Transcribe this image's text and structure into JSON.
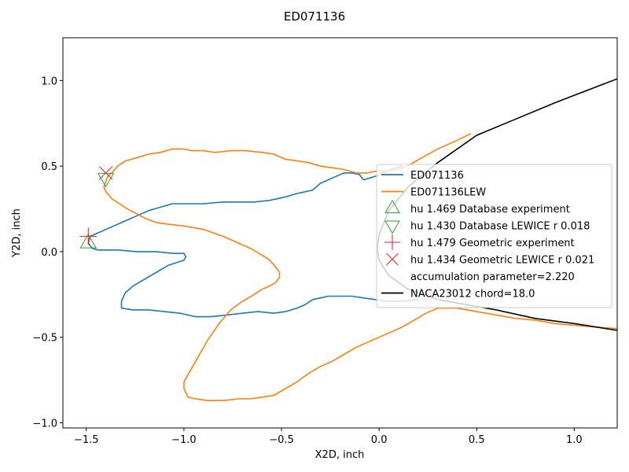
{
  "chart_data": {
    "type": "line",
    "title": "ED071136",
    "xlabel": "X2D, inch",
    "ylabel": "Y2D, inch",
    "xlim": [
      -1.62,
      1.22
    ],
    "ylim": [
      -1.03,
      1.25
    ],
    "xticks": [
      -1.5,
      -1.0,
      -0.5,
      0.0,
      0.5,
      1.0
    ],
    "xtick_labels": [
      "−1.5",
      "−1.0",
      "−0.5",
      "0.0",
      "0.5",
      "1.0"
    ],
    "yticks": [
      -1.0,
      -0.5,
      0.0,
      0.5,
      1.0
    ],
    "ytick_labels": [
      "−1.0",
      "−0.5",
      "0.0",
      "0.5",
      "1.0"
    ],
    "grid": false,
    "legend_position": "center-right",
    "series": [
      {
        "name": "ED071136",
        "color": "#1f77b4",
        "kind": "line",
        "x": [
          0.12,
          0.06,
          -0.02,
          -0.08,
          -0.1,
          -0.14,
          -0.18,
          -0.22,
          -0.26,
          -0.3,
          -0.34,
          -0.38,
          -0.42,
          -0.48,
          -0.56,
          -0.64,
          -0.72,
          -0.8,
          -0.9,
          -1.0,
          -1.06,
          -1.12,
          -1.18,
          -1.24,
          -1.28,
          -1.32,
          -1.36,
          -1.4,
          -1.44,
          -1.48,
          -1.49,
          -1.47,
          -1.44,
          -1.4,
          -1.34,
          -1.24,
          -1.14,
          -1.06,
          -1.0,
          -0.99,
          -1.0,
          -1.08,
          -1.14,
          -1.2,
          -1.26,
          -1.3,
          -1.32,
          -1.32,
          -1.26,
          -1.18,
          -1.1,
          -1.02,
          -0.94,
          -0.86,
          -0.78,
          -0.7,
          -0.62,
          -0.54,
          -0.48,
          -0.42,
          -0.38,
          -0.34,
          -0.3,
          -0.26,
          -0.2,
          -0.14,
          -0.08,
          -0.02,
          0.04,
          0.12,
          0.2
        ],
        "y": [
          0.5,
          0.48,
          0.44,
          0.42,
          0.45,
          0.46,
          0.46,
          0.44,
          0.42,
          0.4,
          0.36,
          0.35,
          0.34,
          0.32,
          0.3,
          0.29,
          0.29,
          0.29,
          0.28,
          0.28,
          0.28,
          0.26,
          0.24,
          0.21,
          0.19,
          0.17,
          0.15,
          0.13,
          0.11,
          0.09,
          0.05,
          0.02,
          0.01,
          0.01,
          0.01,
          0.0,
          0.0,
          -0.01,
          -0.01,
          -0.03,
          -0.05,
          -0.08,
          -0.12,
          -0.16,
          -0.2,
          -0.24,
          -0.29,
          -0.33,
          -0.34,
          -0.34,
          -0.35,
          -0.36,
          -0.38,
          -0.38,
          -0.37,
          -0.36,
          -0.35,
          -0.36,
          -0.35,
          -0.33,
          -0.31,
          -0.28,
          -0.27,
          -0.26,
          -0.26,
          -0.26,
          -0.27,
          -0.28,
          -0.29,
          -0.29,
          -0.28
        ]
      },
      {
        "name": "ED071136LEW",
        "color": "#ff7f0e",
        "kind": "line",
        "x": [
          0.47,
          0.38,
          0.3,
          0.22,
          0.16,
          0.1,
          0.04,
          -0.02,
          -0.06,
          -0.12,
          -0.18,
          -0.24,
          -0.3,
          -0.36,
          -0.42,
          -0.48,
          -0.54,
          -0.6,
          -0.68,
          -0.76,
          -0.84,
          -0.9,
          -0.96,
          -1.0,
          -1.06,
          -1.12,
          -1.18,
          -1.24,
          -1.3,
          -1.34,
          -1.37,
          -1.39,
          -1.4,
          -1.41,
          -1.4,
          -1.37,
          -1.33,
          -1.29,
          -1.24,
          -1.19,
          -1.14,
          -1.08,
          -1.0,
          -0.9,
          -0.8,
          -0.72,
          -0.66,
          -0.6,
          -0.56,
          -0.53,
          -0.51,
          -0.51,
          -0.53,
          -0.56,
          -0.6,
          -0.64,
          -0.7,
          -0.76,
          -0.82,
          -0.88,
          -0.93,
          -0.97,
          -1.0,
          -1.0,
          -0.98,
          -0.94,
          -0.88,
          -0.8,
          -0.72,
          -0.66,
          -0.6,
          -0.54,
          -0.48,
          -0.42,
          -0.36,
          -0.3,
          -0.24,
          -0.18,
          -0.12,
          -0.06,
          0.0,
          0.06,
          0.12,
          0.18,
          0.24,
          0.3,
          0.4,
          0.5,
          0.6,
          0.7,
          0.8,
          0.9,
          1.0,
          1.1,
          1.22
        ],
        "y": [
          0.69,
          0.64,
          0.6,
          0.55,
          0.51,
          0.48,
          0.47,
          0.47,
          0.46,
          0.46,
          0.48,
          0.49,
          0.5,
          0.52,
          0.53,
          0.54,
          0.57,
          0.58,
          0.59,
          0.59,
          0.58,
          0.59,
          0.59,
          0.6,
          0.6,
          0.58,
          0.57,
          0.55,
          0.53,
          0.5,
          0.46,
          0.44,
          0.41,
          0.38,
          0.35,
          0.31,
          0.28,
          0.25,
          0.22,
          0.19,
          0.17,
          0.16,
          0.15,
          0.13,
          0.09,
          0.05,
          0.02,
          -0.02,
          -0.05,
          -0.09,
          -0.12,
          -0.15,
          -0.18,
          -0.2,
          -0.22,
          -0.25,
          -0.29,
          -0.34,
          -0.42,
          -0.52,
          -0.62,
          -0.7,
          -0.76,
          -0.8,
          -0.85,
          -0.86,
          -0.87,
          -0.87,
          -0.86,
          -0.86,
          -0.85,
          -0.84,
          -0.8,
          -0.76,
          -0.71,
          -0.67,
          -0.64,
          -0.6,
          -0.56,
          -0.53,
          -0.5,
          -0.47,
          -0.44,
          -0.4,
          -0.36,
          -0.33,
          -0.33,
          -0.35,
          -0.37,
          -0.39,
          -0.4,
          -0.42,
          -0.43,
          -0.44,
          -0.45
        ]
      },
      {
        "name": "hu 1.469 Database experiment",
        "color": "#2ca02c",
        "kind": "marker",
        "marker": "triangle-up",
        "x": [
          -1.49
        ],
        "y": [
          0.05
        ]
      },
      {
        "name": "hu 1.430 Database LEWICE r 0.018",
        "color": "#2ca02c",
        "kind": "marker",
        "marker": "triangle-down",
        "x": [
          -1.4
        ],
        "y": [
          0.43
        ]
      },
      {
        "name": "hu 1.479 Geometric experiment",
        "color": "#d62728",
        "kind": "marker",
        "marker": "plus",
        "x": [
          -1.49
        ],
        "y": [
          0.09
        ]
      },
      {
        "name": "hu 1.434 Geometric LEWICE r 0.021",
        "color": "#d62728",
        "kind": "marker",
        "marker": "x",
        "x": [
          -1.4
        ],
        "y": [
          0.46
        ]
      },
      {
        "name": "accumulation parameter=2.220",
        "color": "#ffffff",
        "kind": "none",
        "x": [],
        "y": []
      },
      {
        "name": "NACA23012 chord=18.0",
        "color": "#000000",
        "kind": "line",
        "x": [
          1.22,
          0.9,
          0.5,
          0.3,
          0.15,
          0.05,
          0.0,
          -0.01,
          0.0,
          0.05,
          0.15,
          0.3,
          0.45,
          0.6,
          0.8,
          1.0,
          1.22
        ],
        "y": [
          1.01,
          0.87,
          0.68,
          0.52,
          0.38,
          0.24,
          0.1,
          0.02,
          -0.05,
          -0.14,
          -0.22,
          -0.28,
          -0.31,
          -0.34,
          -0.39,
          -0.42,
          -0.46
        ]
      }
    ]
  }
}
